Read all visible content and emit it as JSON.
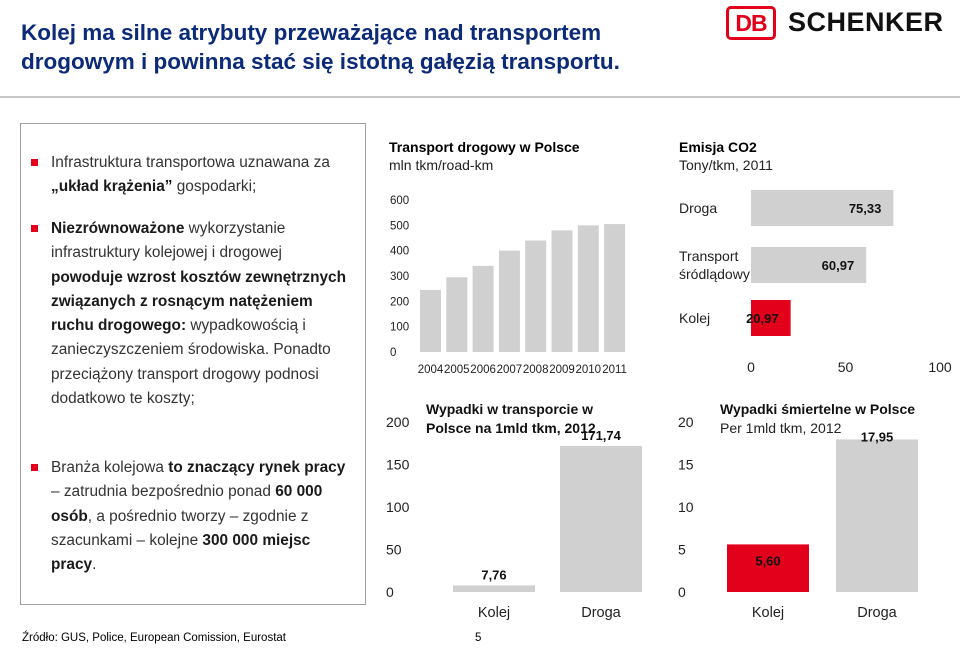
{
  "title": {
    "line1": "Kolej ma silne atrybuty przeważające nad transportem",
    "line2": "drogowym i powinna stać się istotną gałęzią transportu."
  },
  "logo": {
    "mark": "DB",
    "name": "SCHENKER",
    "color": "#e2001a"
  },
  "bullets": [
    {
      "segments": [
        {
          "t": "Infrastruktura transportowa uznawana za ",
          "b": false
        },
        {
          "t": "„układ krążenia”",
          "b": true
        },
        {
          "t": " gospodarki;",
          "b": false
        }
      ]
    },
    {
      "segments": [
        {
          "t": "Niezrównoważone",
          "b": true
        },
        {
          "t": " wykorzystanie infrastruktury kolejowej i drogowej ",
          "b": false
        },
        {
          "t": "powoduje wzrost kosztów zewnętrznych związanych z rosnącym natężeniem ruchu drogowego:",
          "b": true
        },
        {
          "t": " wypadkowością i zanieczyszczeniem środowiska. Ponadto przeciążony transport drogowy podnosi dodatkowo te koszty;",
          "b": false
        }
      ]
    },
    {
      "segments": [
        {
          "t": "Branża kolejowa ",
          "b": false
        },
        {
          "t": "to znaczący rynek pracy",
          "b": true
        },
        {
          "t": " – zatrudnia bezpośrednio ponad ",
          "b": false
        },
        {
          "t": "60 000 osób",
          "b": true
        },
        {
          "t": ", a pośrednio tworzy – zgodnie z szacunkami – kolejne ",
          "b": false
        },
        {
          "t": "300 000 miejsc pracy",
          "b": true
        },
        {
          "t": ".",
          "b": false
        }
      ]
    }
  ],
  "colors": {
    "gray_bar": "#d0d0d0",
    "red_bar": "#e2001a",
    "accent": "#e2001a",
    "title": "#0b2a78"
  },
  "chart_data": [
    {
      "id": "road",
      "type": "bar",
      "title": "Transport drogowy w Polsce",
      "subtitle": "mln tkm/road-km",
      "categories": [
        "2004",
        "2005",
        "2006",
        "2007",
        "2008",
        "2009",
        "2010",
        "2011"
      ],
      "values": [
        245,
        295,
        340,
        400,
        440,
        480,
        500,
        505
      ],
      "yticks": [
        "0",
        "100",
        "200",
        "300",
        "400",
        "500",
        "600"
      ],
      "ylim": [
        0,
        600
      ]
    },
    {
      "id": "co2",
      "type": "bar-horizontal",
      "title": "Emisja CO2",
      "subtitle": "Tony/tkm, 2011",
      "categories": [
        "Droga",
        "Transport śródlądowy",
        "Kolej"
      ],
      "category_lines": [
        [
          "Droga"
        ],
        [
          "Transport",
          "śródlądowy"
        ],
        [
          "Kolej"
        ]
      ],
      "values": [
        75.33,
        60.97,
        20.97
      ],
      "value_labels": [
        "75,33",
        "60,97",
        "20,97"
      ],
      "xticks": [
        "0",
        "50",
        "100"
      ],
      "xlim": [
        0,
        100
      ]
    },
    {
      "id": "accidents",
      "type": "bar",
      "title": "Wypadki w transporcie w Polsce na 1mld tkm, 2012",
      "title_lines": [
        "Wypadki w transporcie w",
        "Polsce na 1mld tkm, 2012"
      ],
      "categories": [
        "Kolej",
        "Droga"
      ],
      "values": [
        7.76,
        171.74
      ],
      "value_labels": [
        "7,76",
        "171,74"
      ],
      "yticks": [
        "0",
        "50",
        "100",
        "150",
        "200"
      ],
      "ylim": [
        0,
        200
      ]
    },
    {
      "id": "fatal",
      "type": "bar",
      "title": "Wypadki śmiertelne w Polsce",
      "subtitle": "Per 1mld tkm, 2012",
      "categories": [
        "Kolej",
        "Droga"
      ],
      "values": [
        5.6,
        17.95
      ],
      "value_labels": [
        "5,60",
        "17,95"
      ],
      "yticks": [
        "0",
        "5",
        "10",
        "15",
        "20"
      ],
      "ylim": [
        0,
        20
      ]
    }
  ],
  "footer": {
    "source": "Źródło: GUS, Police, European Comission, Eurostat",
    "page": "5"
  }
}
